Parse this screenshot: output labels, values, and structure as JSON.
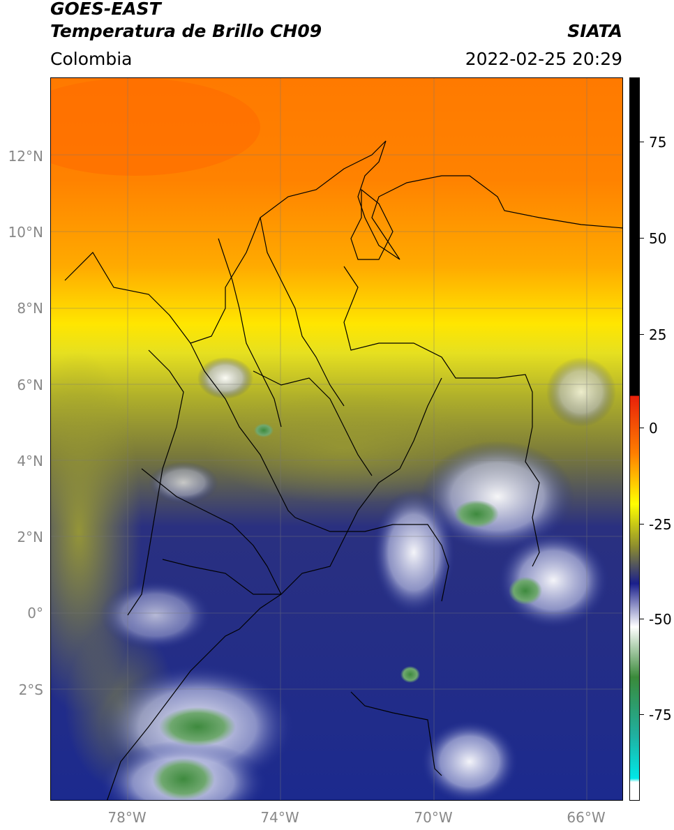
{
  "header": {
    "satellite": "GOES-EAST",
    "product": "Temperatura de Brillo CH09",
    "region": "Colombia",
    "brand": "SIATA",
    "datetime": "2022-02-25 20:29"
  },
  "axes": {
    "lat_labels": [
      "12°N",
      "10°N",
      "8°N",
      "6°N",
      "4°N",
      "2°N",
      "0°",
      "2°S"
    ],
    "lon_labels": [
      "78°W",
      "74°W",
      "70°W",
      "66°W"
    ]
  },
  "colorbar": {
    "ticks": [
      "75",
      "50",
      "25",
      "0",
      "-25",
      "-50",
      "-75"
    ],
    "colors": {
      "black": "#000000",
      "red": "#e8200a",
      "orange": "#ff7f00",
      "yellow": "#ffff00",
      "olive": "#8a8a30",
      "navy": "#1a1f8c",
      "white": "#ffffff",
      "green": "#3a8a3a",
      "teal": "#20b0a0",
      "cyan": "#00e8e8"
    }
  },
  "map": {
    "colors": {
      "ocean_orange": "#ff8a10",
      "deep_orange": "#ff6e00",
      "yellow": "#f0e800",
      "olive": "#9a9a2a",
      "navy": "#1c2a8e",
      "cloud_white": "#d8dcef",
      "cloud_green": "#4d8f4d"
    }
  }
}
